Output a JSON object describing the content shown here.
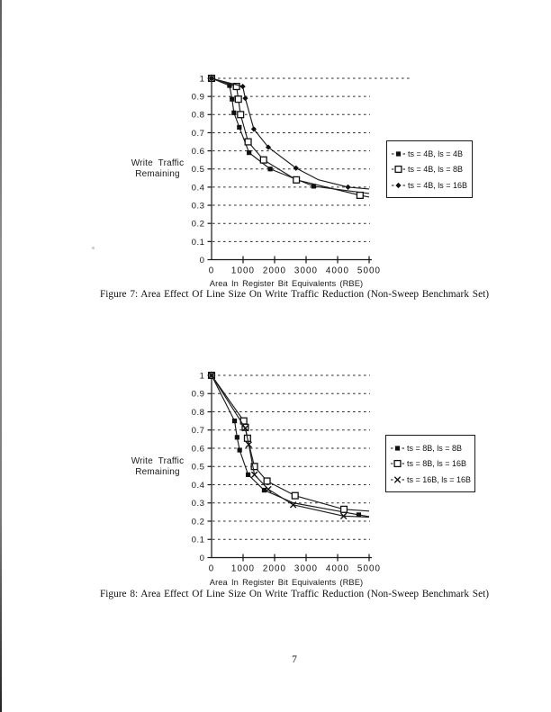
{
  "page": {
    "number": "7"
  },
  "chart_data": [
    {
      "type": "line",
      "figure_id": "figure-7",
      "caption": "Figure 7: Area Effect Of Line Size On Write Traffic Reduction (Non-Sweep Benchmark Set)",
      "ylabel_lines": [
        "Write Traffic",
        "Remaining"
      ],
      "xlabel": "Area In Register Bit Equivalents (RBE)",
      "xlim": [
        0,
        5000
      ],
      "ylim": [
        0,
        1
      ],
      "grid": "dashed-horizontal",
      "legend_position": "right",
      "x_ticks": [
        0,
        1000,
        2000,
        3000,
        4000,
        5000
      ],
      "x_tick_labels": [
        "0",
        "1000",
        "2000",
        "3000",
        "4000",
        "5000"
      ],
      "y_ticks": [
        1,
        0.9,
        0.8,
        0.7,
        0.6,
        0.5,
        0.4,
        0.3,
        0.2,
        0.1,
        0
      ],
      "y_tick_labels": [
        "1",
        "0.9",
        "0.8",
        "0.7",
        "0.6",
        "0.5",
        "0.4",
        "0.3",
        "0.2",
        "0.1",
        "0"
      ],
      "series": [
        {
          "name": "ts = 4B, ls = 4B",
          "marker": "filled-square",
          "points": [
            [
              0,
              1.0
            ],
            [
              570,
              0.96
            ],
            [
              650,
              0.885
            ],
            [
              710,
              0.81
            ],
            [
              880,
              0.73
            ],
            [
              1190,
              0.59
            ],
            [
              1860,
              0.5
            ],
            [
              3240,
              0.405
            ]
          ],
          "line_end": [
            5000,
            0.365
          ]
        },
        {
          "name": "ts = 4B, ls = 8B",
          "marker": "open-square",
          "points": [
            [
              0,
              1.0
            ],
            [
              790,
              0.955
            ],
            [
              850,
              0.885
            ],
            [
              920,
              0.8
            ],
            [
              1160,
              0.65
            ],
            [
              1650,
              0.55
            ],
            [
              2690,
              0.44
            ],
            [
              4710,
              0.355
            ]
          ],
          "line_end": [
            5000,
            0.345
          ]
        },
        {
          "name": "ts = 4B, ls = 16B",
          "marker": "diamond",
          "points": [
            [
              0,
              1.0
            ],
            [
              990,
              0.955
            ],
            [
              1070,
              0.89
            ],
            [
              1340,
              0.72
            ],
            [
              1800,
              0.62
            ],
            [
              2680,
              0.505
            ],
            [
              4330,
              0.4
            ]
          ],
          "extra_vertices": [
            [
              3400,
              0.44
            ]
          ],
          "line_end": [
            5000,
            0.39
          ]
        }
      ]
    },
    {
      "type": "line",
      "figure_id": "figure-8",
      "caption": "Figure 8: Area Effect Of Line Size On Write Traffic Reduction (Non-Sweep Benchmark Set)",
      "ylabel_lines": [
        "Write Traffic",
        "Remaining"
      ],
      "xlabel": "Area In Register Bit Equivalents (RBE)",
      "xlim": [
        0,
        5000
      ],
      "ylim": [
        0,
        1
      ],
      "grid": "dashed-horizontal",
      "legend_position": "right",
      "x_ticks": [
        0,
        1000,
        2000,
        3000,
        4000,
        5000
      ],
      "x_tick_labels": [
        "0",
        "1000",
        "2000",
        "3000",
        "4000",
        "5000"
      ],
      "y_ticks": [
        1,
        0.9,
        0.8,
        0.7,
        0.6,
        0.5,
        0.4,
        0.3,
        0.2,
        0.1,
        0
      ],
      "y_tick_labels": [
        "1",
        "0.9",
        "0.8",
        "0.7",
        "0.6",
        "0.5",
        "0.4",
        "0.3",
        "0.2",
        "0.1",
        "0"
      ],
      "series": [
        {
          "name": "ts = 8B, ls = 8B",
          "marker": "filled-square",
          "points": [
            [
              0,
              1.0
            ],
            [
              730,
              0.75
            ],
            [
              810,
              0.66
            ],
            [
              890,
              0.59
            ],
            [
              1160,
              0.455
            ],
            [
              1670,
              0.37
            ],
            [
              4670,
              0.235
            ]
          ],
          "extra_vertices": [
            [
              2600,
              0.3
            ]
          ],
          "line_end": [
            5000,
            0.225
          ]
        },
        {
          "name": "ts = 8B, ls = 16B",
          "marker": "open-square",
          "points": [
            [
              0,
              1.0
            ],
            [
              1020,
              0.75
            ],
            [
              1070,
              0.715
            ],
            [
              1140,
              0.655
            ],
            [
              1360,
              0.5
            ],
            [
              1760,
              0.42
            ],
            [
              2650,
              0.34
            ],
            [
              4200,
              0.265
            ]
          ],
          "line_end": [
            5000,
            0.255
          ]
        },
        {
          "name": "ts = 16B, ls = 16B",
          "marker": "x-mark",
          "points": [
            [
              0,
              1.0
            ],
            [
              1070,
              0.71
            ],
            [
              1180,
              0.62
            ],
            [
              1360,
              0.455
            ],
            [
              1800,
              0.375
            ],
            [
              2590,
              0.29
            ],
            [
              4190,
              0.228
            ]
          ],
          "line_end": [
            5000,
            0.222
          ]
        }
      ]
    }
  ]
}
